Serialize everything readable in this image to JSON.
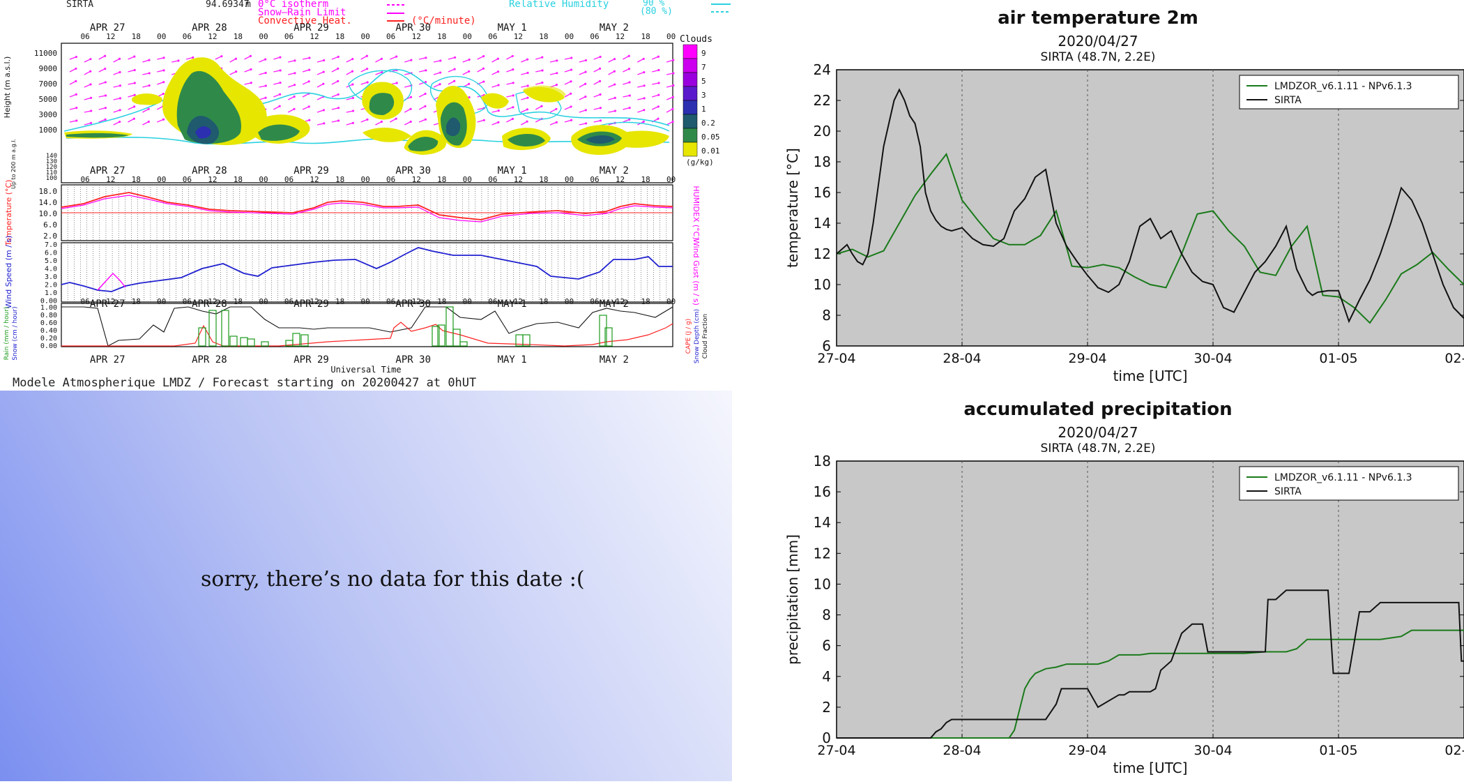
{
  "meteogram": {
    "station": "SIRTA",
    "alt_value": "94.69347",
    "alt_unit": "m",
    "legend": {
      "isotherm": "0°C isotherm",
      "snow_rain": "Snow–Rain Limit",
      "convective": "Convective Heat.",
      "convective_unit": "(°C/minute)",
      "rh_label": "Relative Humidity",
      "rh_90": "90 %",
      "rh_80": "(80 %)"
    },
    "days": [
      "APR 27",
      "APR 28",
      "APR 29",
      "APR 30",
      "MAY 1",
      "MAY 2"
    ],
    "hours": [
      "06",
      "12",
      "18",
      "00"
    ],
    "height_label": "Height (m a.s.l.)",
    "height_ticks": [
      "11000",
      "9000",
      "7000",
      "5000",
      "3000",
      "1000"
    ],
    "low_label": "Up to 200 m a.g.l.",
    "low_ticks": [
      "140",
      "130",
      "120",
      "110",
      "100"
    ],
    "clouds_title": "Clouds",
    "clouds_unit": "(g/kg)",
    "cloud_scale": [
      {
        "v": "9",
        "c": "#ff00ff"
      },
      {
        "v": "7",
        "c": "#cc00ee"
      },
      {
        "v": "5",
        "c": "#9a00dd"
      },
      {
        "v": "3",
        "c": "#5a1acc"
      },
      {
        "v": "1",
        "c": "#2b2fb0"
      },
      {
        "v": "0.2",
        "c": "#1f5a6e"
      },
      {
        "v": "0.05",
        "c": "#2f8a4a"
      },
      {
        "v": "0.01",
        "c": "#e6e600"
      }
    ],
    "temp_label": "Temperature (°C)",
    "humidex_label": "HUMIDEX (°C)",
    "temp_ticks": [
      "18.0",
      "14.0",
      "10.0",
      "6.0",
      "2.0"
    ],
    "wind_label": "Wind Speed (m / s)",
    "gust_label": "Wind Gust (m / s)",
    "wind_ticks": [
      "7.0",
      "6.0",
      "5.0",
      "4.0",
      "3.0",
      "2.0",
      "1.0",
      "0.00"
    ],
    "rain_label": "Rain (mm / hour)",
    "snow_label": "Snow (cm / hour)",
    "cape_label": "CAPE (J / g)",
    "snowdepth_label": "Snow Depth (cm)",
    "cloudfrac_label": "Cloud Fraction",
    "precip_ticks": [
      "1.00",
      "0.80",
      "0.60",
      "0.40",
      "0.20",
      "0.00"
    ],
    "x_label": "Universal Time",
    "footer": "Modele Atmospherique LMDZ / Forecast starting on 20200427 at 0hUT"
  },
  "no_data_message": "sorry, there’s no data for this date  :(",
  "chart_data": [
    {
      "type": "line",
      "title": "air temperature 2m",
      "subtitle": "2020/04/27",
      "subtitle2": "SIRTA (48.7N, 2.2E)",
      "xlabel": "time [UTC]",
      "ylabel": "temperature [°C]",
      "x_ticks": [
        "27-04",
        "28-04",
        "29-04",
        "30-04",
        "01-05",
        "02-05"
      ],
      "xlim": [
        0,
        120
      ],
      "ylim": [
        6,
        24
      ],
      "y_ticks": [
        6,
        8,
        10,
        12,
        14,
        16,
        18,
        20,
        22,
        24
      ],
      "grid": true,
      "legend": "top-right",
      "series": [
        {
          "name": "LMDZOR_v6.1.11 - NPv6.1.3",
          "color": "#1a7a1a",
          "x": [
            0,
            3,
            6,
            9,
            12,
            15,
            18,
            21,
            24,
            27,
            30,
            33,
            36,
            39,
            42,
            45,
            48,
            51,
            54,
            57,
            60,
            63,
            66,
            69,
            72,
            75,
            78,
            81,
            84,
            87,
            90,
            93,
            96,
            99,
            102,
            105,
            108,
            111,
            114,
            117,
            120
          ],
          "y": [
            12,
            12.3,
            11.8,
            12.2,
            14,
            15.8,
            17.2,
            18.5,
            15.5,
            14.2,
            13,
            12.6,
            12.6,
            13.2,
            14.8,
            11.2,
            11.1,
            11.3,
            11.1,
            10.5,
            10,
            9.8,
            12,
            14.6,
            14.8,
            13.5,
            12.5,
            10.8,
            10.6,
            12.5,
            13.8,
            9.3,
            9.2,
            8.5,
            7.5,
            9,
            10.7,
            11.3,
            12.1,
            11,
            10
          ]
        },
        {
          "name": "SIRTA",
          "color": "#111111",
          "x": [
            0,
            1,
            2,
            3,
            4,
            5,
            6,
            7,
            8,
            9,
            10,
            11,
            12,
            13,
            14,
            15,
            16,
            17,
            18,
            19,
            20,
            21,
            22,
            24,
            26,
            28,
            30,
            32,
            34,
            36,
            38,
            40,
            42,
            44,
            46,
            48,
            50,
            52,
            54,
            56,
            58,
            60,
            62,
            64,
            66,
            68,
            70,
            72,
            74,
            76,
            78,
            80,
            82,
            84,
            86,
            88,
            90,
            91,
            92,
            94,
            96,
            98,
            100,
            102,
            104,
            106,
            108,
            110,
            112,
            114,
            116,
            118,
            120
          ],
          "y": [
            12,
            12.3,
            12.6,
            12,
            11.5,
            11.3,
            12,
            14,
            16.5,
            19,
            20.5,
            22,
            22.7,
            22,
            21,
            20.5,
            19,
            16,
            14.8,
            14.2,
            13.8,
            13.6,
            13.5,
            13.7,
            13,
            12.6,
            12.5,
            13,
            14.8,
            15.6,
            17,
            17.5,
            14,
            12.5,
            11.5,
            10.6,
            9.8,
            9.5,
            10,
            11.5,
            13.8,
            14.3,
            13,
            13.5,
            12,
            10.8,
            10.2,
            10,
            8.5,
            8.2,
            9.5,
            10.8,
            11.5,
            12.5,
            13.8,
            11,
            9.6,
            9.3,
            9.5,
            9.6,
            9.6,
            7.6,
            9,
            10.3,
            12,
            14,
            16.3,
            15.5,
            14,
            12,
            10,
            8.5,
            7.8
          ]
        }
      ]
    },
    {
      "type": "line",
      "title": "accumulated precipitation",
      "subtitle": "2020/04/27",
      "subtitle2": "SIRTA (48.7N, 2.2E)",
      "xlabel": "time [UTC]",
      "ylabel": "precipitation [mm]",
      "x_ticks": [
        "27-04",
        "28-04",
        "29-04",
        "30-04",
        "01-05",
        "02-05"
      ],
      "xlim": [
        0,
        120
      ],
      "ylim": [
        0,
        18
      ],
      "y_ticks": [
        0,
        2,
        4,
        6,
        8,
        10,
        12,
        14,
        16,
        18
      ],
      "grid": true,
      "legend": "top-right",
      "series": [
        {
          "name": "LMDZOR_v6.1.11 - NPv6.1.3",
          "color": "#1a7a1a",
          "x": [
            0,
            33,
            34,
            36,
            37,
            38,
            40,
            42,
            44,
            46,
            48,
            50,
            52,
            54,
            58,
            60,
            62,
            66,
            70,
            74,
            78,
            82,
            86,
            88,
            90,
            92,
            96,
            100,
            104,
            108,
            110,
            112,
            116,
            120
          ],
          "y": [
            0,
            0,
            0.5,
            3.2,
            3.8,
            4.2,
            4.5,
            4.6,
            4.8,
            4.8,
            4.8,
            4.8,
            5.0,
            5.4,
            5.4,
            5.5,
            5.5,
            5.5,
            5.5,
            5.5,
            5.5,
            5.6,
            5.6,
            5.8,
            6.4,
            6.4,
            6.4,
            6.4,
            6.4,
            6.6,
            7.0,
            7.0,
            7.0,
            7.0
          ]
        },
        {
          "name": "SIRTA",
          "color": "#111111",
          "x": [
            0,
            18,
            19,
            20,
            21,
            22,
            30,
            34,
            36,
            37,
            40,
            42,
            43,
            44,
            46,
            48,
            50,
            54,
            55,
            56,
            58,
            59,
            60,
            61,
            62,
            64,
            66,
            68,
            70,
            71,
            72,
            73,
            76,
            78,
            81,
            82,
            82.5,
            84,
            86,
            87,
            88,
            90,
            92,
            94,
            95,
            96,
            98,
            100,
            102,
            104,
            106,
            108,
            110,
            114,
            119,
            119.5,
            120
          ],
          "y": [
            0,
            0,
            0.4,
            0.6,
            1.0,
            1.2,
            1.2,
            1.2,
            1.2,
            1.2,
            1.2,
            2.2,
            3.2,
            3.2,
            3.2,
            3.2,
            2.0,
            2.8,
            2.8,
            3.0,
            3.0,
            3.0,
            3.0,
            3.2,
            4.4,
            5.0,
            6.8,
            7.4,
            7.4,
            5.6,
            5.6,
            5.6,
            5.6,
            5.6,
            5.6,
            5.6,
            9.0,
            9.0,
            9.6,
            9.6,
            9.6,
            9.6,
            9.6,
            9.6,
            4.2,
            4.2,
            4.2,
            8.2,
            8.2,
            8.8,
            8.8,
            8.8,
            8.8,
            8.8,
            8.8,
            5.0,
            5.0
          ]
        }
      ]
    }
  ]
}
